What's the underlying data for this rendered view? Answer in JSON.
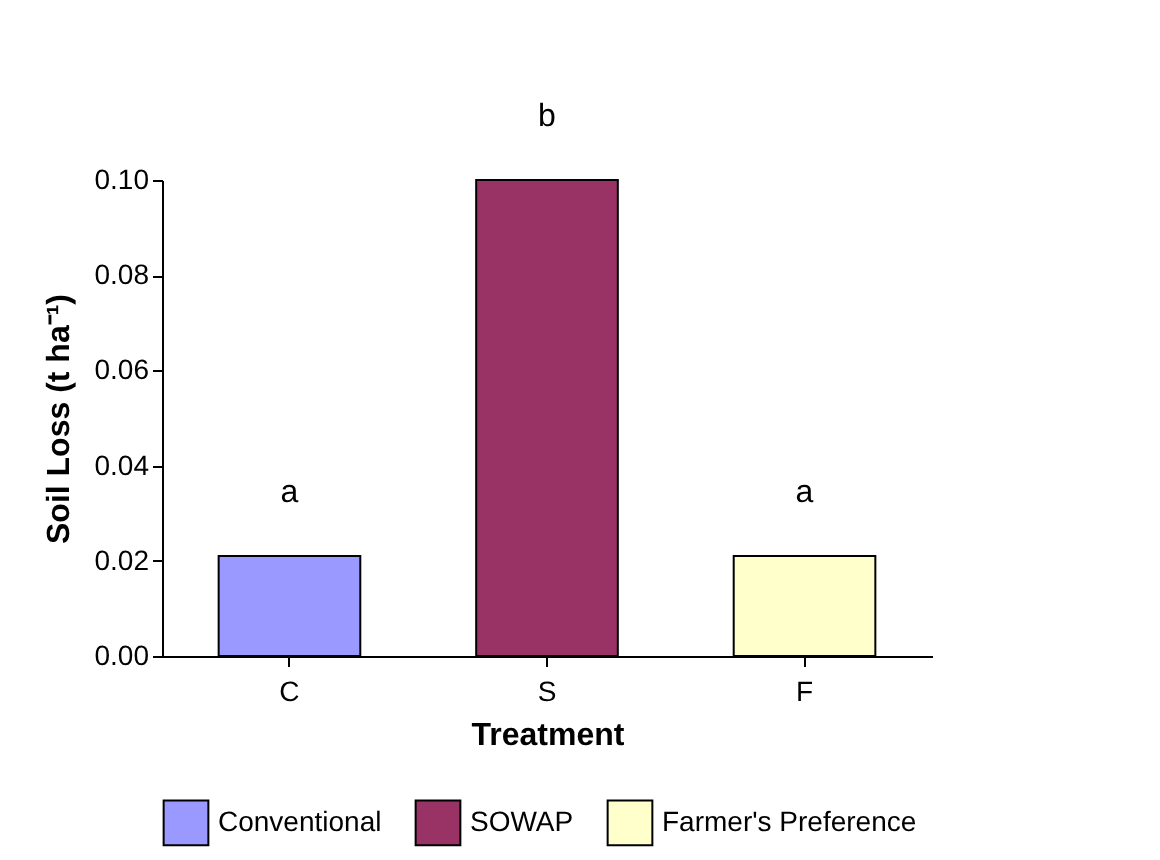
{
  "chart_data": {
    "type": "bar",
    "xlabel": "Treatment",
    "ylabel": "Soil Loss (t ha⁻¹)",
    "categories": [
      "C",
      "S",
      "F"
    ],
    "series": [
      {
        "name": "Conventional",
        "color": "#9999ff",
        "values": [
          0.021,
          null,
          null
        ]
      },
      {
        "name": "SOWAP",
        "color": "#993366",
        "values": [
          null,
          0.1,
          null
        ]
      },
      {
        "name": "Farmer's Preference",
        "color": "#ffffcc",
        "values": [
          null,
          null,
          0.021
        ]
      }
    ],
    "ylim": [
      0,
      0.1
    ],
    "yticks": [
      {
        "value": 0,
        "label": "0.00"
      },
      {
        "value": 0.02,
        "label": "0.02"
      },
      {
        "value": 0.04,
        "label": "0.04"
      },
      {
        "value": 0.06,
        "label": "0.06"
      },
      {
        "value": 0.08,
        "label": "0.08"
      },
      {
        "value": 0.1,
        "label": "0.10"
      }
    ],
    "annotations": [
      {
        "text": "a",
        "x": "C",
        "y": 0.021
      },
      {
        "text": "b",
        "x": "S",
        "y": 0.1
      },
      {
        "text": "a",
        "x": "F",
        "y": 0.021
      }
    ],
    "grid": false,
    "legend": "bottom"
  }
}
